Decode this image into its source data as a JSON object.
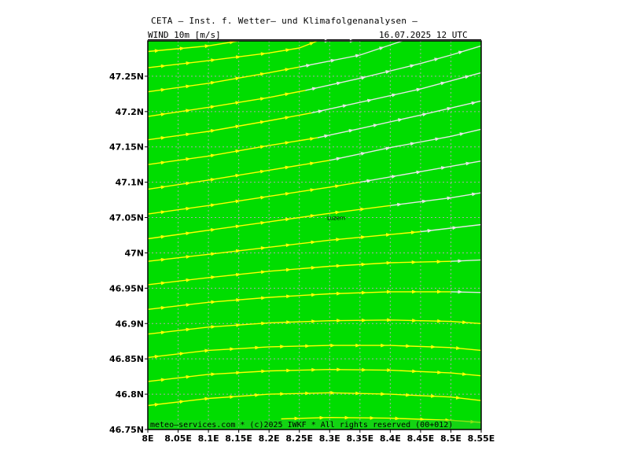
{
  "header": {
    "title": "CETA — Inst. f. Wetter— und Klimafolgenanalysen —",
    "variable": "WIND  10m  [m/s]",
    "datetime": "16.07.2025  12  UTC"
  },
  "footer": {
    "credit": "meteo—services.com * (c)2025 IWKF * All rights reserved (00+012)"
  },
  "map": {
    "lon_range": [
      8.0,
      8.55
    ],
    "lat_range": [
      46.75,
      47.3
    ],
    "background_color": "#00dd00",
    "grid_color": "#aaaaaa",
    "x_ticks": [
      {
        "value": 8.0,
        "label": "8E"
      },
      {
        "value": 8.05,
        "label": "8.05E"
      },
      {
        "value": 8.1,
        "label": "8.1E"
      },
      {
        "value": 8.15,
        "label": "8.15E"
      },
      {
        "value": 8.2,
        "label": "8.2E"
      },
      {
        "value": 8.25,
        "label": "8.25E"
      },
      {
        "value": 8.3,
        "label": "8.3E"
      },
      {
        "value": 8.35,
        "label": "8.35E"
      },
      {
        "value": 8.4,
        "label": "8.4E"
      },
      {
        "value": 8.45,
        "label": "8.45E"
      },
      {
        "value": 8.5,
        "label": "8.5E"
      },
      {
        "value": 8.55,
        "label": "8.55E"
      }
    ],
    "y_ticks": [
      {
        "value": 47.25,
        "label": "47.25N"
      },
      {
        "value": 47.2,
        "label": "47.2N"
      },
      {
        "value": 47.15,
        "label": "47.15N"
      },
      {
        "value": 47.1,
        "label": "47.1N"
      },
      {
        "value": 47.05,
        "label": "47.05N"
      },
      {
        "value": 47.0,
        "label": "47N"
      },
      {
        "value": 46.95,
        "label": "46.95N"
      },
      {
        "value": 46.9,
        "label": "46.9N"
      },
      {
        "value": 46.85,
        "label": "46.85N"
      },
      {
        "value": 46.8,
        "label": "46.8N"
      },
      {
        "value": 46.75,
        "label": "46.75N"
      }
    ],
    "city": {
      "name": "Luzern",
      "lon": 8.31,
      "lat": 47.05
    },
    "streamline_colors": {
      "yellow": "#ffff00",
      "white": "#e6e6e6"
    },
    "streamlines": [
      {
        "color": "yellow",
        "points": [
          [
            8.0,
            47.285
          ],
          [
            8.1,
            47.293
          ],
          [
            8.15,
            47.3
          ]
        ]
      },
      {
        "color": "yellow",
        "points": [
          [
            8.0,
            47.262
          ],
          [
            8.1,
            47.272
          ],
          [
            8.2,
            47.283
          ],
          [
            8.25,
            47.29
          ],
          [
            8.28,
            47.3
          ]
        ]
      },
      {
        "color": "white",
        "points": [
          [
            8.28,
            47.3
          ],
          [
            8.35,
            47.3
          ]
        ]
      },
      {
        "color": "yellow",
        "points": [
          [
            8.0,
            47.228
          ],
          [
            8.1,
            47.24
          ],
          [
            8.2,
            47.255
          ],
          [
            8.25,
            47.263
          ]
        ]
      },
      {
        "color": "white",
        "points": [
          [
            8.25,
            47.263
          ],
          [
            8.35,
            47.28
          ],
          [
            8.42,
            47.3
          ]
        ]
      },
      {
        "color": "yellow",
        "points": [
          [
            8.0,
            47.193
          ],
          [
            8.1,
            47.206
          ],
          [
            8.2,
            47.22
          ],
          [
            8.26,
            47.23
          ]
        ]
      },
      {
        "color": "white",
        "points": [
          [
            8.26,
            47.23
          ],
          [
            8.35,
            47.247
          ],
          [
            8.45,
            47.268
          ],
          [
            8.5,
            47.28
          ],
          [
            8.55,
            47.293
          ]
        ]
      },
      {
        "color": "yellow",
        "points": [
          [
            8.0,
            47.16
          ],
          [
            8.1,
            47.172
          ],
          [
            8.2,
            47.187
          ],
          [
            8.27,
            47.198
          ]
        ]
      },
      {
        "color": "white",
        "points": [
          [
            8.27,
            47.198
          ],
          [
            8.35,
            47.213
          ],
          [
            8.45,
            47.232
          ],
          [
            8.55,
            47.255
          ]
        ]
      },
      {
        "color": "yellow",
        "points": [
          [
            8.0,
            47.125
          ],
          [
            8.1,
            47.137
          ],
          [
            8.2,
            47.152
          ],
          [
            8.28,
            47.163
          ]
        ]
      },
      {
        "color": "white",
        "points": [
          [
            8.28,
            47.163
          ],
          [
            8.35,
            47.176
          ],
          [
            8.45,
            47.195
          ],
          [
            8.55,
            47.215
          ]
        ]
      },
      {
        "color": "yellow",
        "points": [
          [
            8.0,
            47.09
          ],
          [
            8.1,
            47.103
          ],
          [
            8.2,
            47.117
          ],
          [
            8.3,
            47.131
          ]
        ]
      },
      {
        "color": "white",
        "points": [
          [
            8.3,
            47.131
          ],
          [
            8.4,
            47.149
          ],
          [
            8.5,
            47.165
          ],
          [
            8.55,
            47.175
          ]
        ]
      },
      {
        "color": "yellow",
        "points": [
          [
            8.0,
            47.055
          ],
          [
            8.1,
            47.067
          ],
          [
            8.2,
            47.08
          ],
          [
            8.3,
            47.093
          ],
          [
            8.35,
            47.1
          ]
        ]
      },
      {
        "color": "white",
        "points": [
          [
            8.35,
            47.1
          ],
          [
            8.45,
            47.115
          ],
          [
            8.55,
            47.13
          ]
        ]
      },
      {
        "color": "yellow",
        "points": [
          [
            8.0,
            47.02
          ],
          [
            8.1,
            47.032
          ],
          [
            8.2,
            47.044
          ],
          [
            8.3,
            47.056
          ],
          [
            8.4,
            47.067
          ]
        ]
      },
      {
        "color": "white",
        "points": [
          [
            8.4,
            47.067
          ],
          [
            8.5,
            47.078
          ],
          [
            8.55,
            47.085
          ]
        ]
      },
      {
        "color": "yellow",
        "points": [
          [
            8.0,
            46.988
          ],
          [
            8.1,
            46.998
          ],
          [
            8.2,
            47.008
          ],
          [
            8.3,
            47.018
          ],
          [
            8.4,
            47.026
          ],
          [
            8.45,
            47.03
          ]
        ]
      },
      {
        "color": "white",
        "points": [
          [
            8.45,
            47.03
          ],
          [
            8.55,
            47.04
          ]
        ]
      },
      {
        "color": "yellow",
        "points": [
          [
            8.0,
            46.955
          ],
          [
            8.1,
            46.965
          ],
          [
            8.2,
            46.974
          ],
          [
            8.3,
            46.981
          ],
          [
            8.4,
            46.986
          ],
          [
            8.5,
            46.988
          ]
        ]
      },
      {
        "color": "white",
        "points": [
          [
            8.5,
            46.988
          ],
          [
            8.55,
            46.99
          ]
        ]
      },
      {
        "color": "yellow",
        "points": [
          [
            8.0,
            46.92
          ],
          [
            8.1,
            46.93
          ],
          [
            8.2,
            46.937
          ],
          [
            8.3,
            46.942
          ],
          [
            8.4,
            46.945
          ],
          [
            8.5,
            46.945
          ]
        ]
      },
      {
        "color": "white",
        "points": [
          [
            8.5,
            46.945
          ],
          [
            8.55,
            46.944
          ]
        ]
      },
      {
        "color": "yellow",
        "points": [
          [
            8.0,
            46.885
          ],
          [
            8.1,
            46.895
          ],
          [
            8.2,
            46.901
          ],
          [
            8.3,
            46.904
          ],
          [
            8.4,
            46.905
          ],
          [
            8.5,
            46.903
          ],
          [
            8.55,
            46.9
          ]
        ]
      },
      {
        "color": "yellow",
        "points": [
          [
            8.0,
            46.852
          ],
          [
            8.1,
            46.862
          ],
          [
            8.2,
            46.867
          ],
          [
            8.3,
            46.869
          ],
          [
            8.4,
            46.869
          ],
          [
            8.5,
            46.866
          ],
          [
            8.55,
            46.862
          ]
        ]
      },
      {
        "color": "yellow",
        "points": [
          [
            8.0,
            46.818
          ],
          [
            8.1,
            46.828
          ],
          [
            8.2,
            46.833
          ],
          [
            8.3,
            46.835
          ],
          [
            8.4,
            46.834
          ],
          [
            8.5,
            46.83
          ],
          [
            8.55,
            46.826
          ]
        ]
      },
      {
        "color": "yellow",
        "points": [
          [
            8.0,
            46.784
          ],
          [
            8.1,
            46.794
          ],
          [
            8.2,
            46.8
          ],
          [
            8.3,
            46.802
          ],
          [
            8.4,
            46.8
          ],
          [
            8.5,
            46.796
          ],
          [
            8.55,
            46.791
          ]
        ]
      },
      {
        "color": "yellow",
        "points": [
          [
            8.22,
            46.765
          ],
          [
            8.3,
            46.767
          ],
          [
            8.4,
            46.766
          ],
          [
            8.5,
            46.763
          ],
          [
            8.55,
            46.76
          ]
        ]
      }
    ]
  }
}
